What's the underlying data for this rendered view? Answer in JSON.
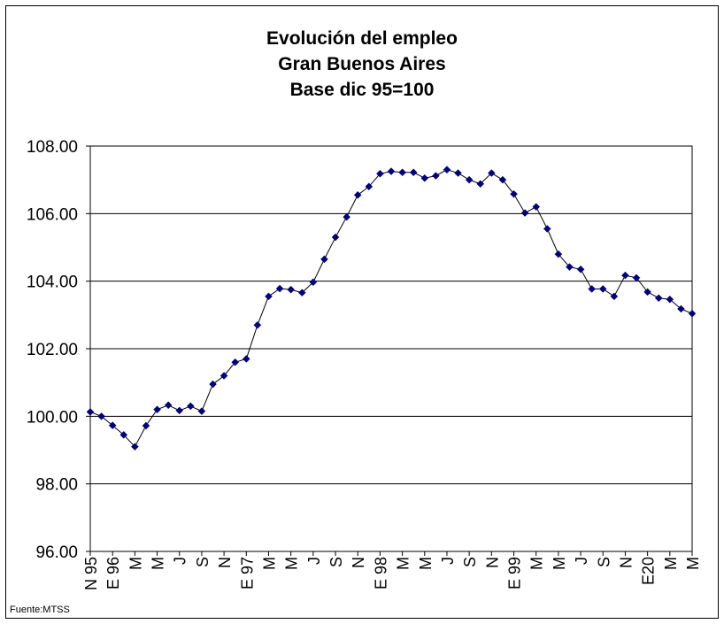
{
  "source_note": "Fuente:MTSS",
  "chart_data": {
    "type": "line",
    "title": [
      "Evolución del empleo",
      "Gran Buenos Aires",
      "Base dic 95=100"
    ],
    "xlabel": "",
    "ylabel": "",
    "ylim": [
      96,
      108
    ],
    "yticks": [
      "96.00",
      "98.00",
      "100.00",
      "102.00",
      "104.00",
      "106.00",
      "108.00"
    ],
    "grid": "horizontal",
    "legend": "none",
    "marker": "diamond",
    "line_color": "#000000",
    "marker_color": "#000080",
    "x_tick_labels": [
      "N 95",
      "E 96",
      "M",
      "M",
      "J",
      "S",
      "N",
      "E 97",
      "M",
      "M",
      "J",
      "S",
      "N",
      "E 98",
      "M",
      "M",
      "J",
      "S",
      "N",
      "E 99",
      "M",
      "M",
      "J",
      "S",
      "N",
      "E20",
      "M",
      "M"
    ],
    "series": [
      {
        "values": [
          100.13,
          100.0,
          99.73,
          99.45,
          99.1,
          99.72,
          100.2,
          100.33,
          100.17,
          100.3,
          100.15,
          100.95,
          101.2,
          101.6,
          101.7,
          102.7,
          103.55,
          103.78,
          103.75,
          103.66,
          103.97,
          104.65,
          105.3,
          105.9,
          106.55,
          106.8,
          107.18,
          107.25,
          107.22,
          107.22,
          107.05,
          107.12,
          107.3,
          107.2,
          107.0,
          106.88,
          107.2,
          107.0,
          106.58,
          106.02,
          106.2,
          105.55,
          104.8,
          104.42,
          104.35,
          103.77,
          103.77,
          103.55,
          104.17,
          104.1,
          103.68,
          103.5,
          103.46,
          103.18,
          103.04
        ]
      }
    ]
  }
}
